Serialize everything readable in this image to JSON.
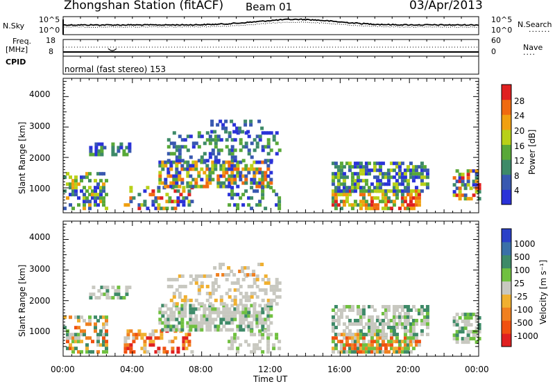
{
  "header": {
    "title": "Zhongshan Station (fitACF)",
    "beam": "Beam 01",
    "date": "03/Apr/2013"
  },
  "top_panels": {
    "nsky_label": "N.Sky",
    "nsearch_label": "N.Search",
    "left_ticks": [
      "10^5",
      "10^0"
    ],
    "right_ticks": [
      "10^5",
      "10^0"
    ],
    "freq_label": "Freq.",
    "freq_unit": "[MHz]",
    "freq_ticks": [
      "18",
      "8"
    ],
    "nave_ticks": [
      "60",
      "0"
    ],
    "nave_label": "Nave",
    "cpid_label": "CPID",
    "cpid_text": "normal (fast stereo) 153"
  },
  "chart_data": [
    {
      "type": "heatmap",
      "parameter": "Power",
      "ylabel": "Slant Range [km]",
      "ylim": [
        180,
        4600
      ],
      "yticks": [
        "1000",
        "2000",
        "3000",
        "4000"
      ],
      "xlim": [
        "00:00",
        "24:00"
      ],
      "colorbar_label": "Power [dB]",
      "colorbar_ticks": [
        "4",
        "8",
        "12",
        "16",
        "20",
        "24",
        "28"
      ],
      "colorbar_colors": [
        "#2a32d8",
        "#3858b0",
        "#3e8a68",
        "#58a838",
        "#b8d018",
        "#f0a010",
        "#f06a10",
        "#e02020"
      ]
    },
    {
      "type": "heatmap",
      "parameter": "Velocity",
      "ylabel": "Slant Range [km]",
      "ylim": [
        180,
        4600
      ],
      "yticks": [
        "1000",
        "2000",
        "3000",
        "4000"
      ],
      "xlim": [
        "00:00",
        "24:00"
      ],
      "xlabel": "Time UT",
      "xticks": [
        "00:00",
        "04:00",
        "08:00",
        "12:00",
        "16:00",
        "20:00",
        "00:00"
      ],
      "colorbar_label": "Velocity [m s⁻¹]",
      "colorbar_ticks": [
        "1000",
        "500",
        "100",
        "25",
        "-25",
        "-100",
        "-500",
        "-1000"
      ],
      "colorbar_colors": [
        "#2a40c8",
        "#3a70a8",
        "#3e8a68",
        "#70c040",
        "#c8c8c0",
        "#f0b030",
        "#f08020",
        "#f05010",
        "#e02020"
      ]
    }
  ]
}
